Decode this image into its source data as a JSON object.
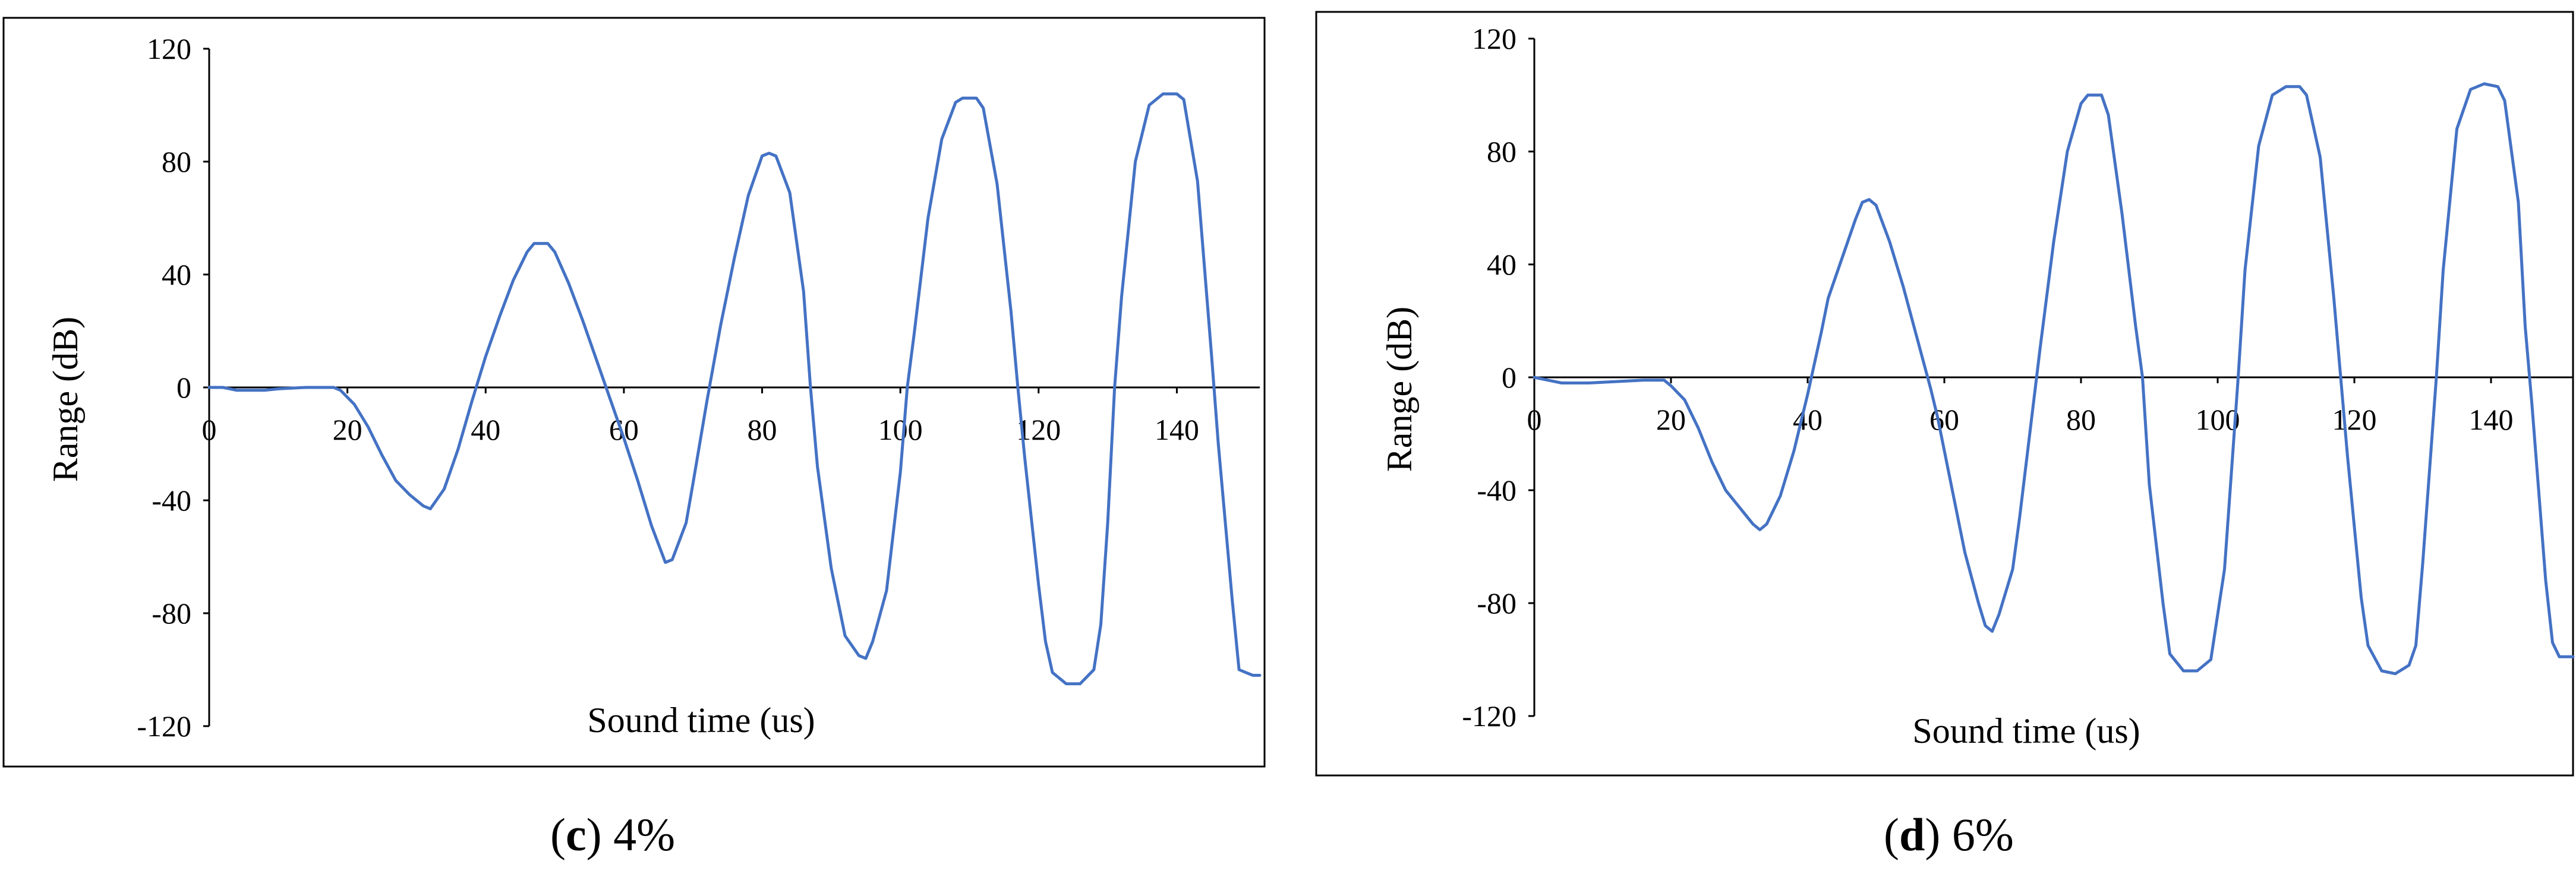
{
  "chart_data": [
    {
      "type": "line",
      "panel": "c",
      "caption_letter": "c",
      "caption_text": "4%",
      "xlabel": "Sound time (us)",
      "ylabel": "Range (dB)",
      "xlim": [
        0,
        152
      ],
      "ylim": [
        -120,
        120
      ],
      "x_ticks": [
        0,
        20,
        40,
        60,
        80,
        100,
        120,
        140
      ],
      "y_ticks": [
        120,
        80,
        40,
        0,
        -40,
        -80,
        -120
      ],
      "grid": false,
      "series": [
        {
          "color": "#4472C4",
          "points": [
            [
              0,
              0
            ],
            [
              2,
              0
            ],
            [
              4,
              -1
            ],
            [
              6,
              -1
            ],
            [
              8,
              -1
            ],
            [
              10,
              -0.5
            ],
            [
              14,
              0
            ],
            [
              18,
              0
            ],
            [
              19,
              -1
            ],
            [
              21,
              -6
            ],
            [
              23,
              -14
            ],
            [
              25,
              -24
            ],
            [
              27,
              -33
            ],
            [
              29,
              -38
            ],
            [
              31,
              -42
            ],
            [
              32,
              -43
            ],
            [
              34,
              -36
            ],
            [
              36,
              -22
            ],
            [
              38,
              -5
            ],
            [
              40,
              11
            ],
            [
              42,
              25
            ],
            [
              44,
              38
            ],
            [
              46,
              48
            ],
            [
              47,
              51
            ],
            [
              49,
              51
            ],
            [
              50,
              48
            ],
            [
              52,
              37
            ],
            [
              54,
              24
            ],
            [
              56,
              10
            ],
            [
              58,
              -4
            ],
            [
              60,
              -18
            ],
            [
              62,
              -33
            ],
            [
              64,
              -49
            ],
            [
              66,
              -62
            ],
            [
              67,
              -61
            ],
            [
              69,
              -48
            ],
            [
              70,
              -34
            ],
            [
              72,
              -5
            ],
            [
              74,
              22
            ],
            [
              76,
              46
            ],
            [
              78,
              68
            ],
            [
              80,
              82
            ],
            [
              81,
              83
            ],
            [
              82,
              82
            ],
            [
              84,
              69
            ],
            [
              86,
              34
            ],
            [
              87,
              0
            ],
            [
              88,
              -28
            ],
            [
              90,
              -64
            ],
            [
              92,
              -88
            ],
            [
              94,
              -95
            ],
            [
              95,
              -96
            ],
            [
              96,
              -90
            ],
            [
              98,
              -72
            ],
            [
              100,
              -30
            ],
            [
              101,
              0
            ],
            [
              102,
              19
            ],
            [
              104,
              60
            ],
            [
              106,
              88
            ],
            [
              108,
              101
            ],
            [
              109,
              102.5
            ],
            [
              111,
              102.5
            ],
            [
              112,
              99
            ],
            [
              114,
              72
            ],
            [
              116,
              27
            ],
            [
              117,
              0
            ],
            [
              118,
              -25
            ],
            [
              120,
              -70
            ],
            [
              121,
              -90
            ],
            [
              122,
              -101
            ],
            [
              124,
              -105
            ],
            [
              126,
              -105
            ],
            [
              128,
              -100
            ],
            [
              129,
              -84
            ],
            [
              130,
              -48
            ],
            [
              131,
              0
            ],
            [
              132,
              32
            ],
            [
              134,
              80
            ],
            [
              136,
              100
            ],
            [
              138,
              104
            ],
            [
              140,
              104
            ],
            [
              141,
              102
            ],
            [
              143,
              73
            ],
            [
              145,
              12
            ],
            [
              146,
              -20
            ],
            [
              148,
              -75
            ],
            [
              149,
              -100
            ],
            [
              150,
              -101
            ],
            [
              151,
              -102
            ],
            [
              152,
              -102
            ]
          ]
        }
      ]
    },
    {
      "type": "line",
      "panel": "d",
      "caption_letter": "d",
      "caption_text": "6%",
      "xlabel": "Sound time (us)",
      "ylabel": "Range (dB)",
      "xlim": [
        0,
        152
      ],
      "ylim": [
        -120,
        120
      ],
      "x_ticks": [
        0,
        20,
        40,
        60,
        80,
        100,
        120,
        140
      ],
      "y_ticks": [
        120,
        80,
        40,
        0,
        -40,
        -80,
        -120
      ],
      "grid": false,
      "series": [
        {
          "color": "#4472C4",
          "points": [
            [
              0,
              0
            ],
            [
              2,
              -1
            ],
            [
              4,
              -2
            ],
            [
              8,
              -2
            ],
            [
              12,
              -1.5
            ],
            [
              16,
              -1
            ],
            [
              19,
              -1
            ],
            [
              20,
              -3
            ],
            [
              22,
              -8
            ],
            [
              24,
              -18
            ],
            [
              26,
              -30
            ],
            [
              28,
              -40
            ],
            [
              30,
              -46
            ],
            [
              32,
              -52
            ],
            [
              33,
              -54
            ],
            [
              34,
              -52
            ],
            [
              36,
              -42
            ],
            [
              38,
              -26
            ],
            [
              40,
              -6
            ],
            [
              42,
              16
            ],
            [
              43,
              28
            ],
            [
              45,
              42
            ],
            [
              47,
              56
            ],
            [
              48,
              62
            ],
            [
              49,
              63
            ],
            [
              50,
              61
            ],
            [
              52,
              48
            ],
            [
              54,
              32
            ],
            [
              56,
              14
            ],
            [
              58,
              -4
            ],
            [
              59,
              -14
            ],
            [
              61,
              -38
            ],
            [
              63,
              -62
            ],
            [
              65,
              -80
            ],
            [
              66,
              -88
            ],
            [
              67,
              -90
            ],
            [
              68,
              -84
            ],
            [
              70,
              -68
            ],
            [
              71,
              -50
            ],
            [
              72,
              -30
            ],
            [
              74,
              10
            ],
            [
              76,
              48
            ],
            [
              78,
              80
            ],
            [
              80,
              97
            ],
            [
              81,
              100
            ],
            [
              83,
              100
            ],
            [
              84,
              93
            ],
            [
              86,
              58
            ],
            [
              88,
              18
            ],
            [
              89,
              0
            ],
            [
              90,
              -38
            ],
            [
              92,
              -80
            ],
            [
              93,
              -98
            ],
            [
              95,
              -104
            ],
            [
              97,
              -104
            ],
            [
              99,
              -100
            ],
            [
              101,
              -68
            ],
            [
              103,
              0
            ],
            [
              104,
              38
            ],
            [
              106,
              82
            ],
            [
              108,
              100
            ],
            [
              110,
              103
            ],
            [
              112,
              103
            ],
            [
              113,
              100
            ],
            [
              115,
              78
            ],
            [
              117,
              28
            ],
            [
              118,
              0
            ],
            [
              119,
              -28
            ],
            [
              121,
              -78
            ],
            [
              122,
              -95
            ],
            [
              124,
              -104
            ],
            [
              126,
              -105
            ],
            [
              128,
              -102
            ],
            [
              129,
              -95
            ],
            [
              130,
              -66
            ],
            [
              132,
              0
            ],
            [
              133,
              38
            ],
            [
              135,
              88
            ],
            [
              137,
              102
            ],
            [
              139,
              104
            ],
            [
              141,
              103
            ],
            [
              142,
              98
            ],
            [
              144,
              62
            ],
            [
              145,
              18
            ],
            [
              146,
              -10
            ],
            [
              148,
              -72
            ],
            [
              149,
              -94
            ],
            [
              150,
              -99
            ],
            [
              152,
              -99
            ]
          ]
        }
      ]
    }
  ]
}
